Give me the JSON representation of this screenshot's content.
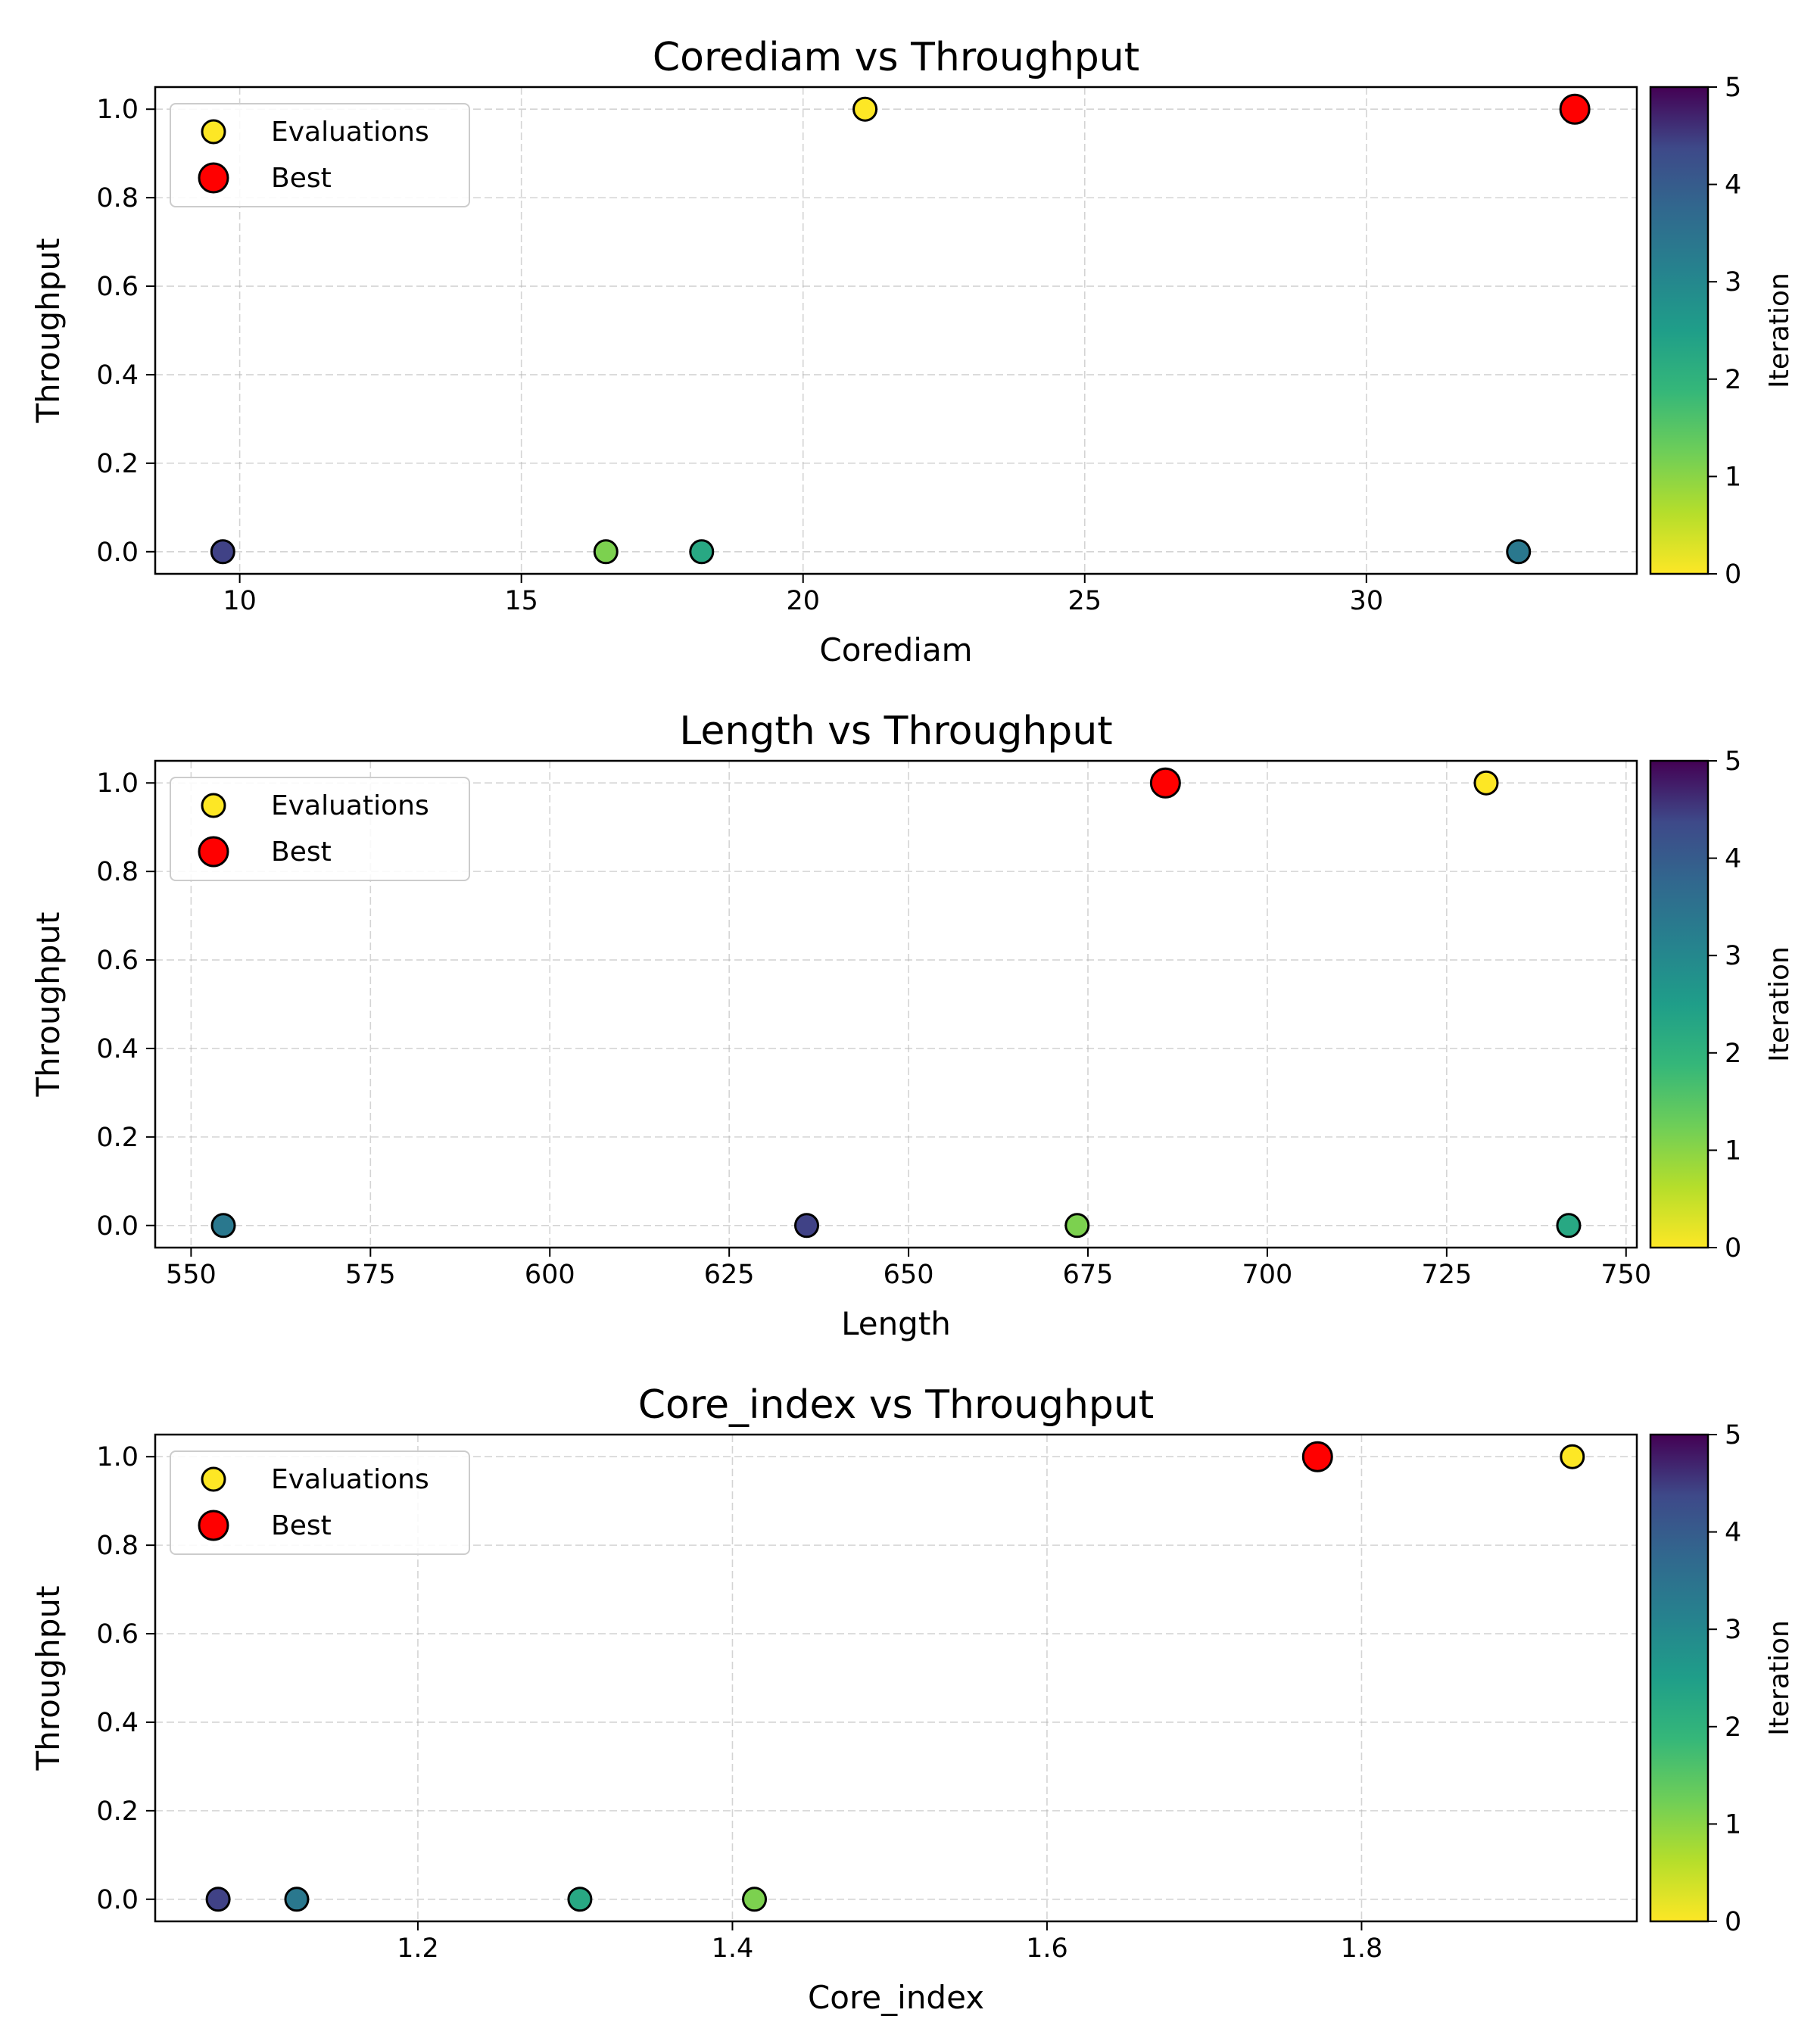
{
  "colorbar": {
    "label": "Iteration",
    "ticks": [
      0,
      1,
      2,
      3,
      4,
      5
    ],
    "range": [
      0,
      5
    ]
  },
  "legend": {
    "entries": [
      "Evaluations",
      "Best"
    ],
    "evaluations_color": "#fde725",
    "best_color": "#ff0000"
  },
  "chart_data": [
    {
      "type": "scatter",
      "title": "Corediam vs Throughput",
      "xlabel": "Corediam",
      "ylabel": "Throughput",
      "xlim": [
        8.5,
        34.8
      ],
      "ylim": [
        -0.05,
        1.05
      ],
      "xticks": [
        10,
        15,
        20,
        25,
        30
      ],
      "xtick_labels": [
        "10",
        "15",
        "20",
        "25",
        "30"
      ],
      "yticks": [
        0.0,
        0.2,
        0.4,
        0.6,
        0.8,
        1.0
      ],
      "ytick_labels": [
        "0.0",
        "0.2",
        "0.4",
        "0.6",
        "0.8",
        "1.0"
      ],
      "grid": true,
      "legend_position": "top-left",
      "points": [
        {
          "x": 21.1,
          "y": 1.0,
          "iteration": 0
        },
        {
          "x": 16.5,
          "y": 0.0,
          "iteration": 1
        },
        {
          "x": 18.2,
          "y": 0.0,
          "iteration": 2
        },
        {
          "x": 32.7,
          "y": 0.0,
          "iteration": 3
        },
        {
          "x": 9.7,
          "y": 0.0,
          "iteration": 4
        }
      ],
      "best": {
        "x": 33.7,
        "y": 1.0
      }
    },
    {
      "type": "scatter",
      "title": "Length vs Throughput",
      "xlabel": "Length",
      "ylabel": "Throughput",
      "xlim": [
        545,
        751.5
      ],
      "ylim": [
        -0.05,
        1.05
      ],
      "xticks": [
        550,
        575,
        600,
        625,
        650,
        675,
        700,
        725,
        750
      ],
      "xtick_labels": [
        "550",
        "575",
        "600",
        "625",
        "650",
        "675",
        "700",
        "725",
        "750"
      ],
      "yticks": [
        0.0,
        0.2,
        0.4,
        0.6,
        0.8,
        1.0
      ],
      "ytick_labels": [
        "0.0",
        "0.2",
        "0.4",
        "0.6",
        "0.8",
        "1.0"
      ],
      "grid": true,
      "legend_position": "top-left",
      "points": [
        {
          "x": 730.5,
          "y": 1.0,
          "iteration": 0
        },
        {
          "x": 673.5,
          "y": 0.0,
          "iteration": 1
        },
        {
          "x": 742.0,
          "y": 0.0,
          "iteration": 2
        },
        {
          "x": 554.5,
          "y": 0.0,
          "iteration": 3
        },
        {
          "x": 635.8,
          "y": 0.0,
          "iteration": 4
        }
      ],
      "best": {
        "x": 685.8,
        "y": 1.0
      }
    },
    {
      "type": "scatter",
      "title": "Core_index vs Throughput",
      "xlabel": "Core_index",
      "ylabel": "Throughput",
      "xlim": [
        1.033,
        1.975
      ],
      "ylim": [
        -0.05,
        1.05
      ],
      "xticks": [
        1.2,
        1.4,
        1.6,
        1.8
      ],
      "xtick_labels": [
        "1.2",
        "1.4",
        "1.6",
        "1.8"
      ],
      "yticks": [
        0.0,
        0.2,
        0.4,
        0.6,
        0.8,
        1.0
      ],
      "ytick_labels": [
        "0.0",
        "0.2",
        "0.4",
        "0.6",
        "0.8",
        "1.0"
      ],
      "grid": true,
      "legend_position": "top-left",
      "points": [
        {
          "x": 1.934,
          "y": 1.0,
          "iteration": 0
        },
        {
          "x": 1.414,
          "y": 0.0,
          "iteration": 1
        },
        {
          "x": 1.303,
          "y": 0.0,
          "iteration": 2
        },
        {
          "x": 1.123,
          "y": 0.0,
          "iteration": 3
        },
        {
          "x": 1.073,
          "y": 0.0,
          "iteration": 4
        }
      ],
      "best": {
        "x": 1.772,
        "y": 1.0
      }
    }
  ]
}
